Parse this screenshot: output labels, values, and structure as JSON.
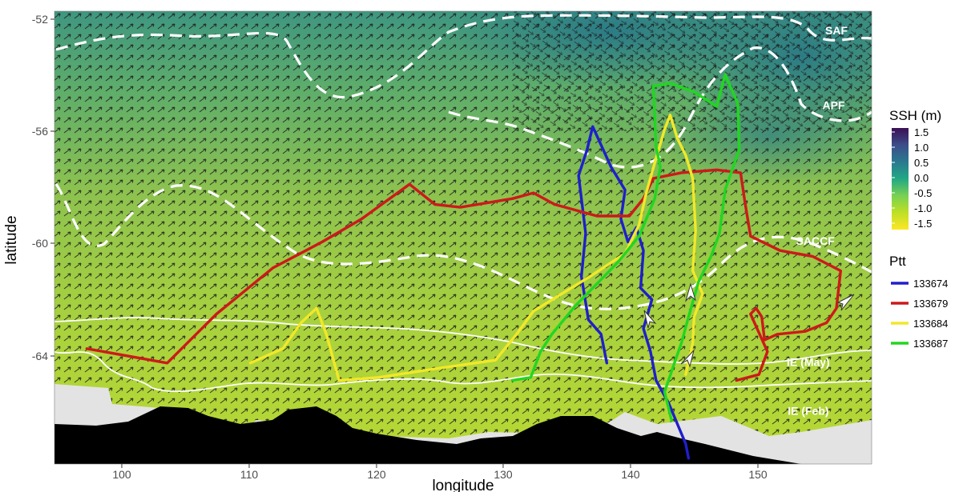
{
  "chart_data": {
    "type": "map",
    "xlabel": "longitude",
    "ylabel": "latitude",
    "xlim": [
      95,
      153
    ],
    "ylim": [
      -67.5,
      -51.8
    ],
    "x_ticks": [
      "100",
      "110",
      "120",
      "130",
      "140",
      "150"
    ],
    "y_ticks": [
      "-52",
      "-56",
      "-60",
      "-64"
    ],
    "colorbar": {
      "title": "SSH (m)",
      "ticks": [
        "1.5",
        "1.0",
        "0.5",
        "0.0",
        "-0.5",
        "-1.0",
        "-1.5"
      ],
      "colors": [
        "#3b0f54",
        "#3d4e8a",
        "#2a788e",
        "#22a884",
        "#7ad151",
        "#bddf26",
        "#fde725"
      ]
    },
    "fronts": [
      {
        "label": "SAF",
        "lon": 150.5,
        "lat": -52.6
      },
      {
        "label": "APF",
        "lon": 150.3,
        "lat": -55.2
      },
      {
        "label": "SACCF",
        "lon": 149.0,
        "lat": -59.9
      },
      {
        "label": "IE (May)",
        "lon": 148.5,
        "lat": -64.1
      },
      {
        "label": "IE (Feb)",
        "lon": 148.5,
        "lat": -65.8
      }
    ],
    "legend": {
      "title": "Ptt",
      "entries": [
        {
          "name": "133674",
          "color": "#1f1fcc"
        },
        {
          "name": "133679",
          "color": "#cc1a1a"
        },
        {
          "name": "133684",
          "color": "#f2e829"
        },
        {
          "name": "133687",
          "color": "#22d622"
        }
      ]
    },
    "tracks": [
      {
        "name": "133674",
        "color": "#1f1fcc",
        "points": [
          [
            134.2,
            -64.0
          ],
          [
            133.8,
            -63.0
          ],
          [
            132.9,
            -62.5
          ],
          [
            132.4,
            -61.0
          ],
          [
            132.7,
            -59.5
          ],
          [
            132.2,
            -57.5
          ],
          [
            132.8,
            -56.6
          ],
          [
            133.2,
            -55.8
          ],
          [
            134.5,
            -57.2
          ],
          [
            135.5,
            -58.0
          ],
          [
            135.2,
            -59.0
          ],
          [
            135.7,
            -59.8
          ],
          [
            136.3,
            -59.3
          ],
          [
            136.8,
            -60.1
          ],
          [
            136.6,
            -61.4
          ],
          [
            137.4,
            -61.8
          ],
          [
            136.8,
            -62.8
          ],
          [
            137.3,
            -63.6
          ],
          [
            137.7,
            -64.6
          ],
          [
            138.6,
            -65.4
          ],
          [
            139.2,
            -66.1
          ],
          [
            139.8,
            -66.8
          ],
          [
            140.0,
            -67.3
          ]
        ]
      },
      {
        "name": "133679",
        "color": "#cc1a1a",
        "points": [
          [
            97.3,
            -63.5
          ],
          [
            103.0,
            -64.0
          ],
          [
            106.5,
            -62.3
          ],
          [
            110.5,
            -60.7
          ],
          [
            114.0,
            -59.8
          ],
          [
            116.8,
            -59.0
          ],
          [
            120.2,
            -57.8
          ],
          [
            122.0,
            -58.5
          ],
          [
            123.8,
            -58.6
          ],
          [
            127.5,
            -58.3
          ],
          [
            129.0,
            -58.1
          ],
          [
            130.5,
            -58.5
          ],
          [
            133.5,
            -58.9
          ],
          [
            135.8,
            -58.9
          ],
          [
            136.8,
            -58.3
          ],
          [
            137.5,
            -57.6
          ],
          [
            139.5,
            -57.4
          ],
          [
            142.0,
            -57.3
          ],
          [
            143.7,
            -57.4
          ],
          [
            144.0,
            -58.4
          ],
          [
            144.4,
            -59.6
          ],
          [
            146.5,
            -60.1
          ],
          [
            148.8,
            -60.3
          ],
          [
            150.8,
            -60.8
          ],
          [
            150.5,
            -62.1
          ],
          [
            149.8,
            -62.6
          ],
          [
            148.3,
            -62.9
          ],
          [
            146.3,
            -63.0
          ],
          [
            145.4,
            -63.2
          ],
          [
            145.2,
            -62.4
          ],
          [
            144.8,
            -62.1
          ],
          [
            144.4,
            -62.3
          ],
          [
            145.6,
            -63.6
          ],
          [
            145.0,
            -64.4
          ],
          [
            143.4,
            -64.6
          ]
        ]
      },
      {
        "name": "133684",
        "color": "#f2e829",
        "points": [
          [
            108.9,
            -64.0
          ],
          [
            111.2,
            -63.5
          ],
          [
            112.5,
            -62.6
          ],
          [
            113.6,
            -62.1
          ],
          [
            114.3,
            -63.0
          ],
          [
            115.2,
            -64.6
          ],
          [
            118.0,
            -64.5
          ],
          [
            122.0,
            -64.2
          ],
          [
            126.3,
            -63.9
          ],
          [
            127.8,
            -63.0
          ],
          [
            129.0,
            -62.2
          ],
          [
            133.0,
            -61.0
          ],
          [
            135.5,
            -60.2
          ],
          [
            136.5,
            -59.2
          ],
          [
            137.0,
            -58.1
          ],
          [
            137.7,
            -56.9
          ],
          [
            138.3,
            -55.9
          ],
          [
            138.7,
            -55.4
          ],
          [
            139.2,
            -56.2
          ],
          [
            139.8,
            -56.8
          ],
          [
            140.3,
            -57.6
          ],
          [
            140.5,
            -59.4
          ],
          [
            140.3,
            -60.8
          ],
          [
            141.0,
            -61.6
          ],
          [
            140.4,
            -62.4
          ],
          [
            140.3,
            -63.3
          ],
          [
            139.8,
            -64.4
          ]
        ]
      },
      {
        "name": "133687",
        "color": "#22d622",
        "points": [
          [
            127.5,
            -64.6
          ],
          [
            128.8,
            -64.5
          ],
          [
            129.5,
            -63.6
          ],
          [
            130.3,
            -63.0
          ],
          [
            132.0,
            -62.0
          ],
          [
            134.0,
            -61.0
          ],
          [
            135.0,
            -60.5
          ],
          [
            136.5,
            -59.6
          ],
          [
            137.6,
            -58.3
          ],
          [
            138.0,
            -57.2
          ],
          [
            137.7,
            -56.5
          ],
          [
            137.5,
            -54.4
          ],
          [
            138.7,
            -54.3
          ],
          [
            140.4,
            -54.6
          ],
          [
            142.0,
            -55.1
          ],
          [
            142.6,
            -54.0
          ],
          [
            143.5,
            -55.0
          ],
          [
            143.6,
            -56.6
          ],
          [
            142.6,
            -58.0
          ],
          [
            142.2,
            -59.5
          ],
          [
            141.6,
            -60.3
          ],
          [
            140.7,
            -61.2
          ],
          [
            140.0,
            -62.4
          ],
          [
            139.5,
            -63.3
          ],
          [
            139.0,
            -64.0
          ],
          [
            138.3,
            -65.0
          ],
          [
            138.8,
            -66.0
          ]
        ]
      }
    ]
  }
}
